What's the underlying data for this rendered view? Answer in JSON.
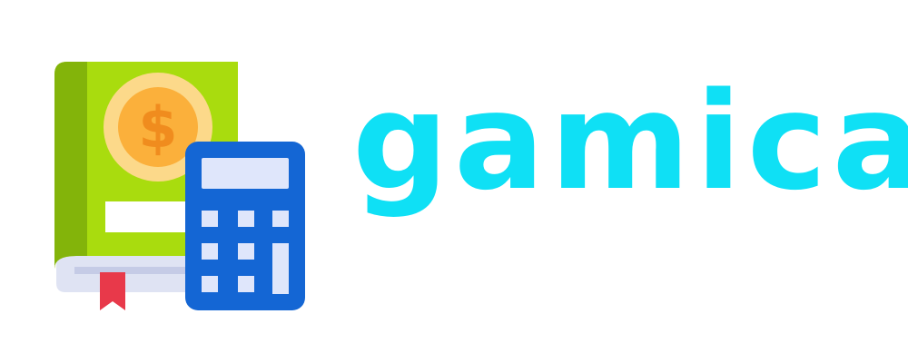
{
  "logo": {
    "brand_name": "gamica",
    "brand_color": "#0fe0f5",
    "coin_symbol": "$",
    "icons": {
      "book": "accounting-book-icon",
      "coin": "dollar-coin-icon",
      "calculator": "calculator-icon",
      "bookmark": "bookmark-ribbon-icon"
    },
    "colors": {
      "book_cover": "#a9dc0e",
      "book_spine": "#83b40a",
      "book_pages": "#dfe3f3",
      "bookmark": "#e8394a",
      "coin_outer": "#fcd98a",
      "coin_inner": "#fbb03b",
      "coin_symbol": "#f08c1e",
      "calculator_body": "#1466d4",
      "calculator_screen": "#dfe6fb",
      "calculator_keys": "#dfe6fb"
    }
  }
}
